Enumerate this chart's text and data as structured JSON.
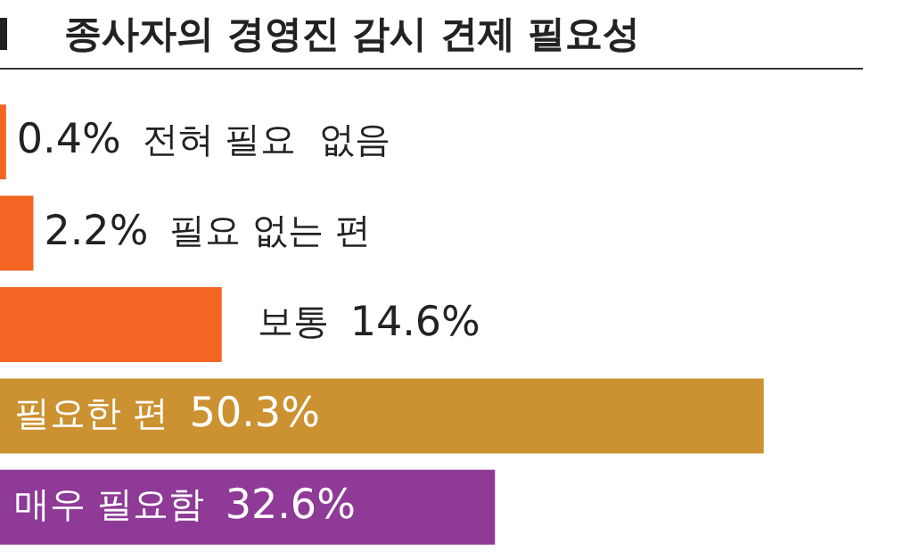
{
  "chart_data": {
    "type": "bar",
    "orientation": "horizontal",
    "title": "종사자의 경영진 감시 견제 필요성",
    "categories": [
      "전혀 필요  없음",
      "필요 없는 편",
      "보통",
      "필요한 편",
      "매우 필요함"
    ],
    "values": [
      0.4,
      2.2,
      14.6,
      50.3,
      32.6
    ],
    "value_labels": [
      "0.4%",
      "2.2%",
      "14.6%",
      "50.3%",
      "32.6%"
    ],
    "colors": [
      "#f26522",
      "#f26522",
      "#f26522",
      "#cc9130",
      "#8e3a96"
    ],
    "legend": false
  }
}
